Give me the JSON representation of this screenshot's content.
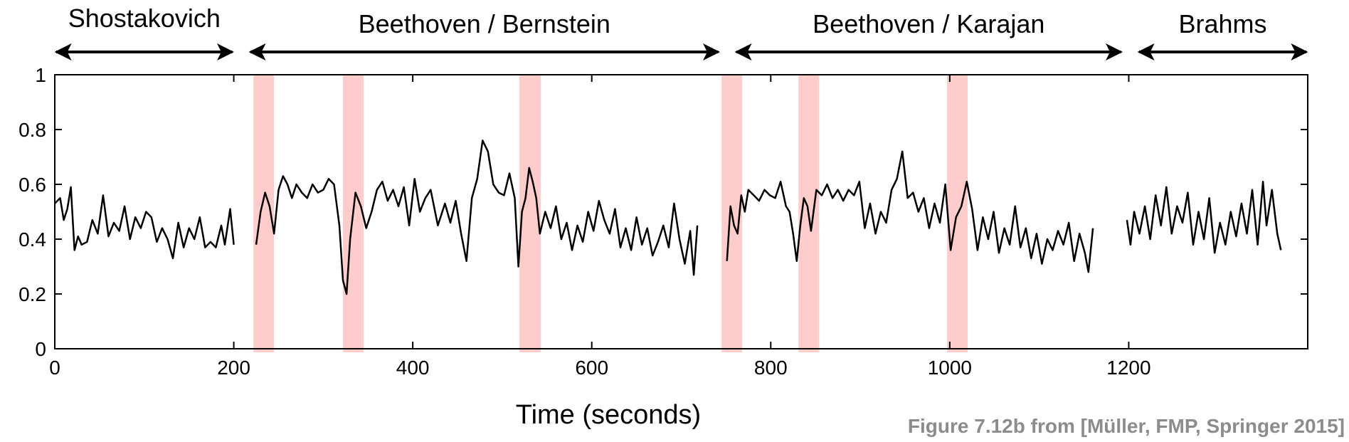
{
  "chart_data": {
    "type": "line",
    "xlabel": "Time (seconds)",
    "ylabel": "",
    "xlim": [
      0,
      1400
    ],
    "ylim": [
      0,
      1
    ],
    "x_ticks": [
      0,
      200,
      400,
      600,
      800,
      1000,
      1200
    ],
    "y_ticks": [
      0,
      0.2,
      0.4,
      0.6,
      0.8,
      1
    ],
    "x_tick_labels": [
      "0",
      "200",
      "400",
      "600",
      "800",
      "1000",
      "1200"
    ],
    "y_tick_labels": [
      "0",
      "0.2",
      "0.4",
      "0.6",
      "0.8",
      "1"
    ],
    "grid": false,
    "segments": [
      {
        "label": "Shostakovich",
        "start": 0,
        "end": 200
      },
      {
        "label": "Beethoven / Bernstein",
        "start": 217,
        "end": 743
      },
      {
        "label": "Beethoven / Karajan",
        "start": 760,
        "end": 1193
      },
      {
        "label": "Brahms",
        "start": 1210,
        "end": 1400
      }
    ],
    "highlight_color": "#ffcccc",
    "highlights": [
      [
        222,
        245
      ],
      [
        322,
        345
      ],
      [
        519,
        543
      ],
      [
        745,
        768
      ],
      [
        831,
        854
      ],
      [
        997,
        1020
      ]
    ],
    "series": [
      {
        "color": "#000000",
        "pieces": [
          {
            "x": [
              0,
              6,
              10,
              14,
              18,
              22,
              26,
              30,
              36,
              42,
              48,
              54,
              60,
              66,
              72,
              78,
              84,
              90,
              96,
              102,
              108,
              114,
              120,
              126,
              132,
              138,
              144,
              150,
              156,
              162,
              168,
              174,
              180,
              186,
              190,
              196,
              200
            ],
            "y": [
              0.53,
              0.55,
              0.47,
              0.51,
              0.59,
              0.36,
              0.41,
              0.38,
              0.39,
              0.47,
              0.42,
              0.56,
              0.41,
              0.46,
              0.43,
              0.52,
              0.4,
              0.48,
              0.44,
              0.5,
              0.48,
              0.39,
              0.44,
              0.4,
              0.33,
              0.46,
              0.37,
              0.44,
              0.4,
              0.48,
              0.37,
              0.39,
              0.37,
              0.45,
              0.38,
              0.51,
              0.38
            ]
          },
          {
            "x": [
              225,
              230,
              235,
              240,
              245,
              250,
              255,
              260,
              265,
              270,
              276,
              282,
              288,
              294,
              300,
              306,
              312,
              318,
              322,
              326,
              330,
              336,
              342,
              348,
              354,
              360,
              366,
              372,
              378,
              384,
              390,
              396,
              402,
              408,
              414,
              420,
              428,
              436,
              442,
              448,
              454,
              460,
              466,
              472,
              478,
              484,
              490,
              496,
              502,
              508,
              514,
              518,
              522,
              526,
              530,
              534,
              538,
              542,
              548,
              554,
              560,
              566,
              572,
              578,
              584,
              590,
              596,
              602,
              608,
              614,
              620,
              626,
              632,
              638,
              644,
              650,
              656,
              662,
              668,
              674,
              680,
              686,
              692,
              698,
              704,
              710,
              714,
              718
            ],
            "y": [
              0.38,
              0.5,
              0.57,
              0.52,
              0.42,
              0.58,
              0.63,
              0.6,
              0.55,
              0.6,
              0.57,
              0.55,
              0.6,
              0.57,
              0.58,
              0.62,
              0.6,
              0.45,
              0.25,
              0.2,
              0.4,
              0.57,
              0.52,
              0.44,
              0.5,
              0.58,
              0.61,
              0.54,
              0.58,
              0.52,
              0.59,
              0.45,
              0.62,
              0.5,
              0.55,
              0.58,
              0.45,
              0.53,
              0.46,
              0.54,
              0.42,
              0.32,
              0.55,
              0.62,
              0.76,
              0.72,
              0.6,
              0.57,
              0.56,
              0.64,
              0.55,
              0.3,
              0.5,
              0.55,
              0.66,
              0.61,
              0.55,
              0.42,
              0.5,
              0.44,
              0.52,
              0.4,
              0.46,
              0.36,
              0.45,
              0.39,
              0.5,
              0.43,
              0.54,
              0.47,
              0.42,
              0.51,
              0.37,
              0.44,
              0.36,
              0.48,
              0.38,
              0.44,
              0.34,
              0.39,
              0.45,
              0.37,
              0.53,
              0.4,
              0.31,
              0.43,
              0.27,
              0.45
            ]
          },
          {
            "x": [
              751,
              755,
              759,
              763,
              767,
              771,
              775,
              781,
              787,
              793,
              799,
              805,
              811,
              817,
              821,
              825,
              829,
              833,
              837,
              841,
              845,
              851,
              857,
              863,
              869,
              875,
              881,
              887,
              893,
              899,
              905,
              911,
              917,
              923,
              929,
              935,
              941,
              947,
              953,
              959,
              965,
              971,
              977,
              983,
              989,
              995,
              1001,
              1007,
              1013,
              1019,
              1025,
              1031,
              1037,
              1043,
              1049,
              1055,
              1061,
              1067,
              1073,
              1079,
              1085,
              1091,
              1097,
              1103,
              1109,
              1115,
              1121,
              1127,
              1133,
              1139,
              1145,
              1151,
              1155,
              1160
            ],
            "y": [
              0.32,
              0.52,
              0.45,
              0.42,
              0.56,
              0.5,
              0.58,
              0.56,
              0.54,
              0.58,
              0.56,
              0.55,
              0.61,
              0.52,
              0.5,
              0.42,
              0.32,
              0.45,
              0.55,
              0.52,
              0.43,
              0.58,
              0.56,
              0.6,
              0.55,
              0.58,
              0.54,
              0.58,
              0.56,
              0.61,
              0.44,
              0.53,
              0.42,
              0.5,
              0.46,
              0.58,
              0.62,
              0.72,
              0.55,
              0.57,
              0.5,
              0.55,
              0.44,
              0.53,
              0.46,
              0.6,
              0.36,
              0.48,
              0.52,
              0.61,
              0.51,
              0.36,
              0.48,
              0.4,
              0.5,
              0.35,
              0.44,
              0.38,
              0.52,
              0.37,
              0.44,
              0.33,
              0.42,
              0.31,
              0.4,
              0.36,
              0.43,
              0.38,
              0.46,
              0.32,
              0.42,
              0.35,
              0.28,
              0.44
            ]
          },
          {
            "x": [
              1198,
              1202,
              1206,
              1212,
              1218,
              1224,
              1230,
              1236,
              1242,
              1248,
              1254,
              1260,
              1266,
              1272,
              1278,
              1284,
              1290,
              1296,
              1302,
              1308,
              1314,
              1320,
              1326,
              1332,
              1338,
              1344,
              1350,
              1354,
              1360,
              1366,
              1370
            ],
            "y": [
              0.47,
              0.38,
              0.5,
              0.42,
              0.52,
              0.4,
              0.56,
              0.45,
              0.59,
              0.42,
              0.52,
              0.46,
              0.57,
              0.38,
              0.5,
              0.4,
              0.55,
              0.35,
              0.46,
              0.38,
              0.5,
              0.41,
              0.53,
              0.42,
              0.58,
              0.38,
              0.61,
              0.45,
              0.58,
              0.42,
              0.36
            ]
          }
        ]
      }
    ]
  },
  "credit": "Figure 7.12b from [Müller, FMP, Springer 2015]"
}
